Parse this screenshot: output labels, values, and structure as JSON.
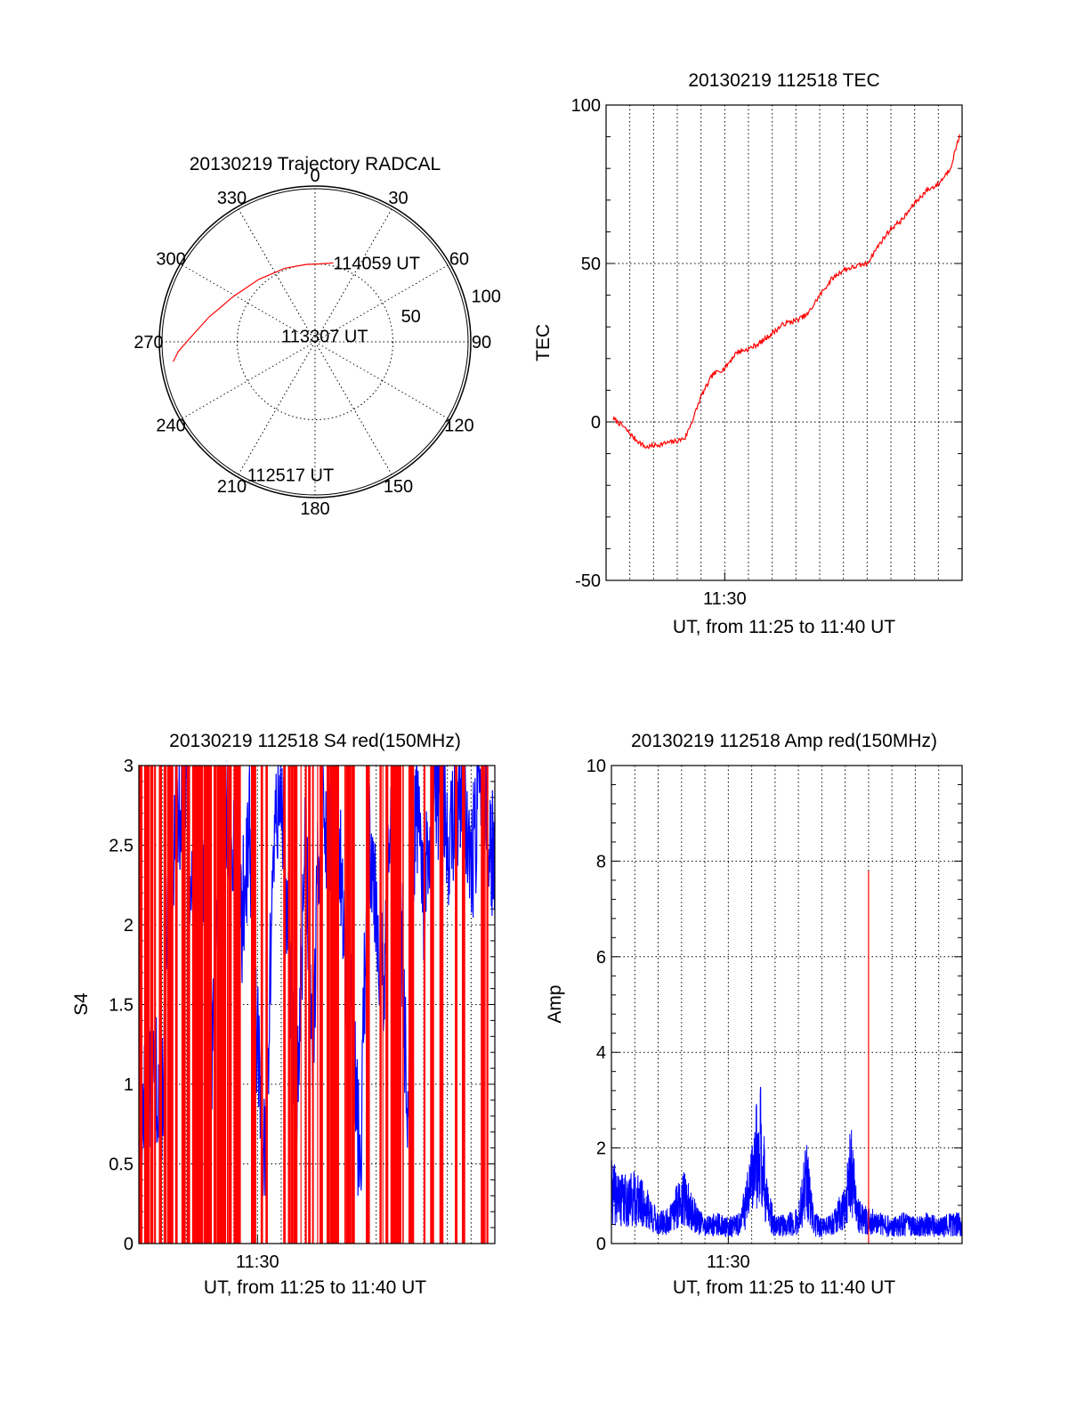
{
  "colors": {
    "red": "#ff0000",
    "blue": "#0000ff",
    "black": "#000000"
  },
  "chart_data": [
    {
      "type": "polar",
      "title": "20130219 Trajectory RADCAL",
      "angle_labels": [
        "0",
        "30",
        "60",
        "90",
        "120",
        "150",
        "180",
        "210",
        "240",
        "270",
        "300",
        "330"
      ],
      "radial_ticks": [
        50,
        100
      ],
      "rmax": 100,
      "series": [
        {
          "color": "red",
          "points": [
            {
              "az": 262,
              "zen": 92
            },
            {
              "az": 266,
              "zen": 88
            },
            {
              "az": 272,
              "zen": 80
            },
            {
              "az": 283,
              "zen": 70
            },
            {
              "az": 299,
              "zen": 60
            },
            {
              "az": 318,
              "zen": 54
            },
            {
              "az": 338,
              "zen": 51
            },
            {
              "az": 354,
              "zen": 50
            },
            {
              "az": 362,
              "zen": 50
            },
            {
              "az": 373,
              "zen": 52
            }
          ]
        }
      ],
      "annotations": [
        {
          "text": "114059 UT",
          "az": 373,
          "zen": 52
        },
        {
          "text": "113307 UT",
          "az": 280,
          "zen": 22
        },
        {
          "text": "112517 UT",
          "az": 207,
          "zen": 96
        }
      ]
    },
    {
      "type": "line",
      "title": "20130219 112518 TEC",
      "xlabel": "UT, from 11:25 to 11:40 UT",
      "ylabel": "TEC",
      "xlim": [
        "11:25",
        "11:40"
      ],
      "ylim": [
        -50,
        100
      ],
      "x_tick_labels": [
        {
          "x": "11:30",
          "label": "11:30"
        }
      ],
      "y_ticks": [
        -50,
        0,
        50,
        100
      ],
      "series": [
        {
          "color": "red",
          "x": [
            "11:25:18",
            "11:25:40",
            "11:26:10",
            "11:26:40",
            "11:27:20",
            "11:28:00",
            "11:28:20",
            "11:28:40",
            "11:29:00",
            "11:29:30",
            "11:30:00",
            "11:30:30",
            "11:31:00",
            "11:31:30",
            "11:32:00",
            "11:32:30",
            "11:33:00",
            "11:33:30",
            "11:34:00",
            "11:34:30",
            "11:35:00",
            "11:35:30",
            "11:36:00",
            "11:36:30",
            "11:37:00",
            "11:37:30",
            "11:38:00",
            "11:38:30",
            "11:39:00",
            "11:39:30",
            "11:39:55"
          ],
          "values": [
            1,
            -1,
            -5,
            -8,
            -7,
            -6,
            -5,
            1,
            8,
            15,
            17,
            22,
            23,
            25,
            28,
            31,
            32,
            34,
            40,
            45,
            48,
            49,
            50,
            56,
            61,
            64,
            69,
            73,
            75,
            80,
            91
          ]
        }
      ]
    },
    {
      "type": "line",
      "title": "20130219 112518 S4 red(150MHz)",
      "xlabel": "UT, from 11:25 to 11:40 UT",
      "ylabel": "S4",
      "xlim": [
        "11:25",
        "11:40"
      ],
      "ylim": [
        0,
        3
      ],
      "x_tick_labels": [
        {
          "x": "11:30",
          "label": "11:30"
        }
      ],
      "y_ticks": [
        0,
        0.5,
        1,
        1.5,
        2,
        2.5,
        3
      ],
      "series": [
        {
          "color": "blue",
          "x": [
            "11:25:00",
            "11:25:20",
            "11:25:40",
            "11:26:00",
            "11:26:20",
            "11:26:40",
            "11:27:00",
            "11:27:20",
            "11:27:40",
            "11:28:00",
            "11:28:20",
            "11:28:40",
            "11:29:00",
            "11:29:20",
            "11:29:40",
            "11:30:00",
            "11:30:20",
            "11:30:40",
            "11:31:00",
            "11:31:20",
            "11:31:40",
            "11:32:00",
            "11:32:20",
            "11:32:40",
            "11:33:00",
            "11:33:20",
            "11:33:40",
            "11:34:00",
            "11:34:20",
            "11:34:40",
            "11:35:00",
            "11:35:20",
            "11:35:40",
            "11:36:00",
            "11:36:20",
            "11:36:40",
            "11:37:00",
            "11:37:20",
            "11:37:40",
            "11:38:00",
            "11:38:20",
            "11:38:40",
            "11:39:00",
            "11:39:20",
            "11:39:40",
            "11:40:00"
          ],
          "values": [
            0.85,
            0.8,
            1.05,
            0.95,
            2.4,
            2.7,
            2.9,
            1.9,
            2.5,
            0.75,
            2.3,
            2.8,
            2.6,
            2.0,
            2.7,
            1.2,
            0.45,
            2.5,
            2.9,
            1.8,
            0.8,
            2.6,
            1.3,
            2.8,
            2.5,
            2.9,
            1.8,
            1.3,
            0.4,
            2.7,
            2.2,
            1.5,
            2.9,
            2.5,
            0.55,
            2.8,
            2.1,
            2.6,
            2.9,
            2.5,
            2.7,
            2.9,
            2.3,
            2.8,
            2.6,
            2.4
          ]
        }
      ]
    },
    {
      "type": "line",
      "title": "20130219 112518 Amp red(150MHz)",
      "xlabel": "UT, from 11:25 to 11:40 UT",
      "ylabel": "Amp",
      "xlim": [
        "11:25",
        "11:40"
      ],
      "ylim": [
        0,
        10
      ],
      "x_tick_labels": [
        {
          "x": "11:30",
          "label": "11:30"
        }
      ],
      "y_ticks": [
        0,
        2,
        4,
        6,
        8,
        10
      ],
      "series": [
        {
          "color": "blue",
          "x": [
            "11:25:00",
            "11:25:30",
            "11:26:00",
            "11:26:30",
            "11:27:00",
            "11:27:30",
            "11:28:00",
            "11:28:30",
            "11:29:00",
            "11:29:30",
            "11:30:00",
            "11:30:30",
            "11:31:00",
            "11:31:20",
            "11:31:40",
            "11:32:00",
            "11:32:30",
            "11:33:00",
            "11:33:20",
            "11:33:40",
            "11:34:00",
            "11:34:30",
            "11:35:00",
            "11:35:15",
            "11:35:30",
            "11:36:00",
            "11:36:30",
            "11:37:00",
            "11:37:30",
            "11:38:00",
            "11:38:30",
            "11:39:00",
            "11:39:30",
            "11:40:00"
          ],
          "values": [
            1.6,
            1.3,
            1.4,
            1.1,
            0.6,
            0.7,
            1.5,
            0.9,
            0.5,
            0.6,
            0.5,
            0.6,
            1.8,
            3.4,
            1.2,
            0.5,
            0.6,
            0.7,
            2.0,
            0.6,
            0.5,
            0.6,
            1.2,
            2.4,
            0.9,
            0.7,
            0.6,
            0.5,
            0.6,
            0.5,
            0.6,
            0.5,
            0.6,
            0.6
          ]
        },
        {
          "color": "red",
          "x": [
            "11:36:00"
          ],
          "values": [
            7.8
          ]
        }
      ]
    }
  ]
}
